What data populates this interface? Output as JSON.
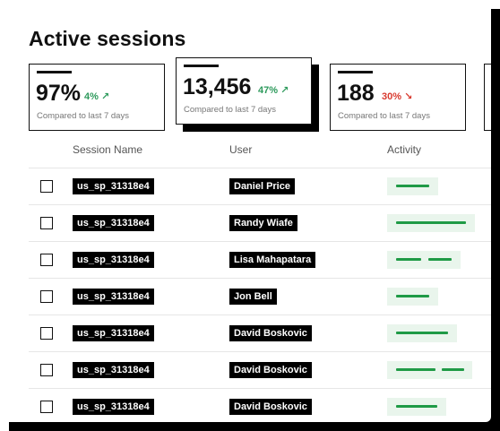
{
  "page": {
    "title": "Active sessions"
  },
  "stats": [
    {
      "value": "97%",
      "delta": "4% ↗",
      "trend": "up",
      "note": "Compared to last 7 days"
    },
    {
      "value": "13,456",
      "delta": "47% ↗",
      "trend": "up",
      "note": "Compared to last 7 days"
    },
    {
      "value": "188",
      "delta": "30% ↘",
      "trend": "down",
      "note": "Compared to last 7 days"
    }
  ],
  "table": {
    "columns": [
      "Session Name",
      "User",
      "Activity"
    ],
    "rows": [
      {
        "session": "us_sp_31318e4",
        "user": "Daniel Price"
      },
      {
        "session": "us_sp_31318e4",
        "user": "Randy Wiafe"
      },
      {
        "session": "us_sp_31318e4",
        "user": "Lisa Mahapatara"
      },
      {
        "session": "us_sp_31318e4",
        "user": "Jon Bell"
      },
      {
        "session": "us_sp_31318e4",
        "user": "David Boskovic"
      },
      {
        "session": "us_sp_31318e4",
        "user": "David Boskovic"
      },
      {
        "session": "us_sp_31318e4",
        "user": "David Boskovic"
      }
    ]
  },
  "colors": {
    "up": "#2e9a5c",
    "down": "#d93a2f",
    "activity": "#1f9a46",
    "activity_bg": "#e9f5ec"
  }
}
